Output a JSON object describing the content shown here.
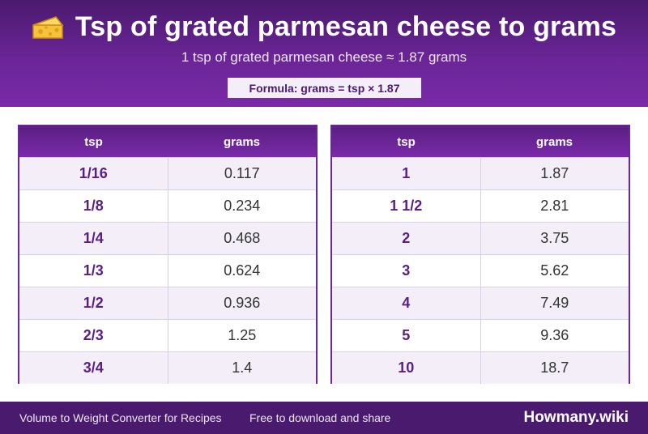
{
  "header": {
    "title": "Tsp of grated parmesan cheese to grams",
    "subtitle": "1 tsp of grated parmesan cheese ≈ 1.87 grams",
    "formula": "Formula: grams = tsp × 1.87",
    "icon": "cheese-icon"
  },
  "tables": {
    "left": {
      "col_tsp": "tsp",
      "col_grams": "grams",
      "rows": [
        {
          "tsp": "1/16",
          "grams": "0.117"
        },
        {
          "tsp": "1/8",
          "grams": "0.234"
        },
        {
          "tsp": "1/4",
          "grams": "0.468"
        },
        {
          "tsp": "1/3",
          "grams": "0.624"
        },
        {
          "tsp": "1/2",
          "grams": "0.936"
        },
        {
          "tsp": "2/3",
          "grams": "1.25"
        },
        {
          "tsp": "3/4",
          "grams": "1.4"
        }
      ]
    },
    "right": {
      "col_tsp": "tsp",
      "col_grams": "grams",
      "rows": [
        {
          "tsp": "1",
          "grams": "1.87"
        },
        {
          "tsp": "1 1/2",
          "grams": "2.81"
        },
        {
          "tsp": "2",
          "grams": "3.75"
        },
        {
          "tsp": "3",
          "grams": "5.62"
        },
        {
          "tsp": "4",
          "grams": "7.49"
        },
        {
          "tsp": "5",
          "grams": "9.36"
        },
        {
          "tsp": "10",
          "grams": "18.7"
        }
      ]
    }
  },
  "footer": {
    "left_text": "Volume to Weight Converter for Recipes",
    "mid_text": "Free to download and share",
    "brand": "Howmany.wiki"
  },
  "colors": {
    "brand_purple": "#6a2596",
    "dark_purple": "#4a1a6e",
    "row_tint": "#f3eef8"
  }
}
